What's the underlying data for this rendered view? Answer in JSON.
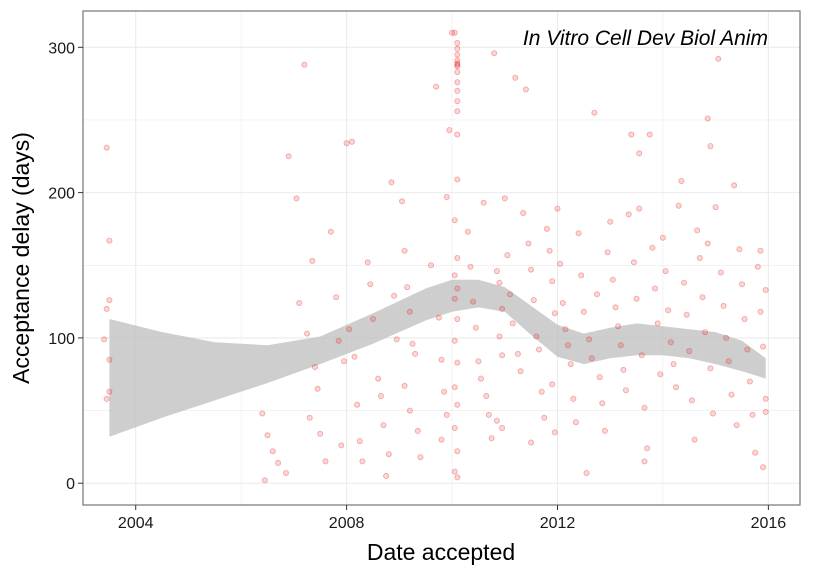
{
  "chart_data": {
    "type": "scatter",
    "title": "",
    "annotation": "In Vitro Cell Dev Biol Anim",
    "xlabel": "Date accepted",
    "ylabel": "Acceptance delay (days)",
    "xlim": [
      2003.0,
      2016.6
    ],
    "ylim": [
      -15,
      325
    ],
    "x_ticks": [
      2004,
      2008,
      2012,
      2016
    ],
    "x_tick_labels": [
      "2004",
      "2008",
      "2012",
      "2016"
    ],
    "y_ticks": [
      0,
      100,
      200,
      300
    ],
    "y_tick_labels": [
      "0",
      "100",
      "200",
      "300"
    ],
    "grid": true,
    "legend": "none",
    "colors": {
      "points": "#e41a1c",
      "ribbon": "#bdbdbd",
      "grid": "#ebebeb",
      "border": "#7f7f7f"
    },
    "smooth_band": {
      "x": [
        2003.5,
        2004.5,
        2005.5,
        2006.5,
        2007.5,
        2008.5,
        2009.5,
        2010.0,
        2010.5,
        2011.0,
        2011.5,
        2012.0,
        2012.5,
        2013.0,
        2013.5,
        2014.0,
        2014.5,
        2015.0,
        2015.5,
        2015.95
      ],
      "lower": [
        32,
        45,
        57,
        69,
        82,
        96,
        112,
        118,
        121,
        118,
        102,
        87,
        82,
        86,
        88,
        88,
        86,
        82,
        77,
        72
      ],
      "upper": [
        113,
        104,
        97,
        95,
        101,
        117,
        134,
        140,
        140,
        135,
        122,
        109,
        103,
        107,
        110,
        108,
        106,
        104,
        98,
        86
      ]
    },
    "points": [
      {
        "x": 2003.45,
        "y": 231
      },
      {
        "x": 2003.5,
        "y": 167
      },
      {
        "x": 2003.5,
        "y": 126
      },
      {
        "x": 2003.45,
        "y": 120
      },
      {
        "x": 2003.4,
        "y": 99
      },
      {
        "x": 2003.5,
        "y": 85
      },
      {
        "x": 2003.5,
        "y": 63
      },
      {
        "x": 2003.45,
        "y": 58
      },
      {
        "x": 2006.4,
        "y": 48
      },
      {
        "x": 2006.5,
        "y": 33
      },
      {
        "x": 2006.6,
        "y": 22
      },
      {
        "x": 2006.7,
        "y": 14
      },
      {
        "x": 2006.45,
        "y": 2
      },
      {
        "x": 2006.85,
        "y": 7
      },
      {
        "x": 2006.9,
        "y": 225
      },
      {
        "x": 2007.05,
        "y": 196
      },
      {
        "x": 2007.1,
        "y": 124
      },
      {
        "x": 2007.25,
        "y": 103
      },
      {
        "x": 2007.2,
        "y": 288
      },
      {
        "x": 2007.35,
        "y": 153
      },
      {
        "x": 2007.4,
        "y": 80
      },
      {
        "x": 2007.45,
        "y": 65
      },
      {
        "x": 2007.3,
        "y": 45
      },
      {
        "x": 2007.5,
        "y": 34
      },
      {
        "x": 2007.6,
        "y": 15
      },
      {
        "x": 2007.7,
        "y": 173
      },
      {
        "x": 2007.8,
        "y": 128
      },
      {
        "x": 2007.85,
        "y": 98
      },
      {
        "x": 2007.95,
        "y": 84
      },
      {
        "x": 2007.9,
        "y": 26
      },
      {
        "x": 2008.0,
        "y": 234
      },
      {
        "x": 2008.1,
        "y": 235
      },
      {
        "x": 2008.05,
        "y": 106
      },
      {
        "x": 2008.15,
        "y": 87
      },
      {
        "x": 2008.2,
        "y": 54
      },
      {
        "x": 2008.25,
        "y": 29
      },
      {
        "x": 2008.3,
        "y": 15
      },
      {
        "x": 2008.4,
        "y": 152
      },
      {
        "x": 2008.45,
        "y": 137
      },
      {
        "x": 2008.5,
        "y": 113
      },
      {
        "x": 2008.6,
        "y": 72
      },
      {
        "x": 2008.65,
        "y": 60
      },
      {
        "x": 2008.7,
        "y": 40
      },
      {
        "x": 2008.8,
        "y": 20
      },
      {
        "x": 2008.85,
        "y": 207
      },
      {
        "x": 2008.9,
        "y": 129
      },
      {
        "x": 2008.95,
        "y": 99
      },
      {
        "x": 2008.75,
        "y": 5
      },
      {
        "x": 2009.05,
        "y": 194
      },
      {
        "x": 2009.1,
        "y": 160
      },
      {
        "x": 2009.15,
        "y": 135
      },
      {
        "x": 2009.2,
        "y": 118
      },
      {
        "x": 2009.25,
        "y": 96
      },
      {
        "x": 2009.3,
        "y": 89
      },
      {
        "x": 2009.1,
        "y": 67
      },
      {
        "x": 2009.2,
        "y": 50
      },
      {
        "x": 2009.35,
        "y": 36
      },
      {
        "x": 2009.4,
        "y": 18
      },
      {
        "x": 2009.6,
        "y": 150
      },
      {
        "x": 2009.7,
        "y": 273
      },
      {
        "x": 2009.75,
        "y": 114
      },
      {
        "x": 2009.8,
        "y": 85
      },
      {
        "x": 2009.85,
        "y": 63
      },
      {
        "x": 2009.9,
        "y": 47
      },
      {
        "x": 2009.8,
        "y": 30
      },
      {
        "x": 2009.95,
        "y": 243
      },
      {
        "x": 2009.9,
        "y": 197
      },
      {
        "x": 2010.0,
        "y": 310
      },
      {
        "x": 2010.05,
        "y": 310
      },
      {
        "x": 2010.1,
        "y": 303
      },
      {
        "x": 2010.1,
        "y": 299
      },
      {
        "x": 2010.1,
        "y": 295
      },
      {
        "x": 2010.1,
        "y": 291
      },
      {
        "x": 2010.1,
        "y": 289
      },
      {
        "x": 2010.1,
        "y": 288
      },
      {
        "x": 2010.1,
        "y": 287
      },
      {
        "x": 2010.1,
        "y": 283
      },
      {
        "x": 2010.1,
        "y": 276
      },
      {
        "x": 2010.1,
        "y": 270
      },
      {
        "x": 2010.1,
        "y": 263
      },
      {
        "x": 2010.1,
        "y": 256
      },
      {
        "x": 2010.1,
        "y": 240
      },
      {
        "x": 2010.05,
        "y": 181
      },
      {
        "x": 2010.1,
        "y": 155
      },
      {
        "x": 2010.05,
        "y": 143
      },
      {
        "x": 2010.1,
        "y": 134
      },
      {
        "x": 2010.05,
        "y": 127
      },
      {
        "x": 2010.1,
        "y": 113
      },
      {
        "x": 2010.05,
        "y": 98
      },
      {
        "x": 2010.1,
        "y": 83
      },
      {
        "x": 2010.05,
        "y": 66
      },
      {
        "x": 2010.1,
        "y": 54
      },
      {
        "x": 2010.05,
        "y": 38
      },
      {
        "x": 2010.1,
        "y": 22
      },
      {
        "x": 2010.05,
        "y": 8
      },
      {
        "x": 2010.1,
        "y": 4
      },
      {
        "x": 2010.1,
        "y": 209
      },
      {
        "x": 2010.3,
        "y": 173
      },
      {
        "x": 2010.35,
        "y": 149
      },
      {
        "x": 2010.4,
        "y": 125
      },
      {
        "x": 2010.45,
        "y": 107
      },
      {
        "x": 2010.5,
        "y": 84
      },
      {
        "x": 2010.55,
        "y": 72
      },
      {
        "x": 2010.6,
        "y": 193
      },
      {
        "x": 2010.65,
        "y": 60
      },
      {
        "x": 2010.7,
        "y": 47
      },
      {
        "x": 2010.75,
        "y": 31
      },
      {
        "x": 2010.8,
        "y": 296
      },
      {
        "x": 2010.85,
        "y": 146
      },
      {
        "x": 2010.9,
        "y": 138
      },
      {
        "x": 2010.95,
        "y": 120
      },
      {
        "x": 2010.9,
        "y": 101
      },
      {
        "x": 2010.95,
        "y": 88
      },
      {
        "x": 2010.85,
        "y": 43
      },
      {
        "x": 2010.95,
        "y": 38
      },
      {
        "x": 2011.0,
        "y": 196
      },
      {
        "x": 2011.05,
        "y": 157
      },
      {
        "x": 2011.1,
        "y": 130
      },
      {
        "x": 2011.15,
        "y": 110
      },
      {
        "x": 2011.2,
        "y": 279
      },
      {
        "x": 2011.25,
        "y": 89
      },
      {
        "x": 2011.3,
        "y": 77
      },
      {
        "x": 2011.35,
        "y": 186
      },
      {
        "x": 2011.4,
        "y": 271
      },
      {
        "x": 2011.45,
        "y": 165
      },
      {
        "x": 2011.5,
        "y": 147
      },
      {
        "x": 2011.55,
        "y": 126
      },
      {
        "x": 2011.6,
        "y": 101
      },
      {
        "x": 2011.65,
        "y": 92
      },
      {
        "x": 2011.7,
        "y": 63
      },
      {
        "x": 2011.5,
        "y": 28
      },
      {
        "x": 2011.75,
        "y": 45
      },
      {
        "x": 2011.8,
        "y": 175
      },
      {
        "x": 2011.85,
        "y": 160
      },
      {
        "x": 2011.9,
        "y": 139
      },
      {
        "x": 2011.95,
        "y": 117
      },
      {
        "x": 2011.9,
        "y": 68
      },
      {
        "x": 2011.95,
        "y": 35
      },
      {
        "x": 2012.0,
        "y": 189
      },
      {
        "x": 2012.05,
        "y": 151
      },
      {
        "x": 2012.1,
        "y": 124
      },
      {
        "x": 2012.15,
        "y": 106
      },
      {
        "x": 2012.2,
        "y": 95
      },
      {
        "x": 2012.25,
        "y": 82
      },
      {
        "x": 2012.3,
        "y": 58
      },
      {
        "x": 2012.35,
        "y": 42
      },
      {
        "x": 2012.4,
        "y": 172
      },
      {
        "x": 2012.45,
        "y": 143
      },
      {
        "x": 2012.5,
        "y": 118
      },
      {
        "x": 2012.55,
        "y": 7
      },
      {
        "x": 2012.6,
        "y": 99
      },
      {
        "x": 2012.65,
        "y": 86
      },
      {
        "x": 2012.7,
        "y": 255
      },
      {
        "x": 2012.75,
        "y": 130
      },
      {
        "x": 2012.8,
        "y": 73
      },
      {
        "x": 2012.85,
        "y": 55
      },
      {
        "x": 2012.9,
        "y": 36
      },
      {
        "x": 2012.95,
        "y": 159
      },
      {
        "x": 2013.0,
        "y": 180
      },
      {
        "x": 2013.05,
        "y": 140
      },
      {
        "x": 2013.1,
        "y": 121
      },
      {
        "x": 2013.15,
        "y": 108
      },
      {
        "x": 2013.2,
        "y": 95
      },
      {
        "x": 2013.25,
        "y": 78
      },
      {
        "x": 2013.3,
        "y": 64
      },
      {
        "x": 2013.35,
        "y": 185
      },
      {
        "x": 2013.4,
        "y": 240
      },
      {
        "x": 2013.45,
        "y": 152
      },
      {
        "x": 2013.5,
        "y": 127
      },
      {
        "x": 2013.55,
        "y": 189
      },
      {
        "x": 2013.6,
        "y": 88
      },
      {
        "x": 2013.65,
        "y": 52
      },
      {
        "x": 2013.7,
        "y": 24
      },
      {
        "x": 2013.75,
        "y": 240
      },
      {
        "x": 2013.8,
        "y": 162
      },
      {
        "x": 2013.85,
        "y": 134
      },
      {
        "x": 2013.9,
        "y": 110
      },
      {
        "x": 2013.95,
        "y": 75
      },
      {
        "x": 2013.55,
        "y": 227
      },
      {
        "x": 2013.65,
        "y": 15
      },
      {
        "x": 2014.0,
        "y": 169
      },
      {
        "x": 2014.05,
        "y": 146
      },
      {
        "x": 2014.1,
        "y": 119
      },
      {
        "x": 2014.15,
        "y": 97
      },
      {
        "x": 2014.2,
        "y": 82
      },
      {
        "x": 2014.25,
        "y": 66
      },
      {
        "x": 2014.3,
        "y": 191
      },
      {
        "x": 2014.35,
        "y": 208
      },
      {
        "x": 2014.4,
        "y": 138
      },
      {
        "x": 2014.45,
        "y": 116
      },
      {
        "x": 2014.5,
        "y": 91
      },
      {
        "x": 2014.55,
        "y": 57
      },
      {
        "x": 2014.6,
        "y": 30
      },
      {
        "x": 2014.65,
        "y": 174
      },
      {
        "x": 2014.7,
        "y": 155
      },
      {
        "x": 2014.75,
        "y": 128
      },
      {
        "x": 2014.8,
        "y": 104
      },
      {
        "x": 2014.85,
        "y": 251
      },
      {
        "x": 2014.9,
        "y": 79
      },
      {
        "x": 2014.95,
        "y": 48
      },
      {
        "x": 2014.9,
        "y": 232
      },
      {
        "x": 2014.85,
        "y": 165
      },
      {
        "x": 2015.0,
        "y": 190
      },
      {
        "x": 2015.05,
        "y": 292
      },
      {
        "x": 2015.1,
        "y": 145
      },
      {
        "x": 2015.15,
        "y": 122
      },
      {
        "x": 2015.2,
        "y": 100
      },
      {
        "x": 2015.25,
        "y": 84
      },
      {
        "x": 2015.3,
        "y": 61
      },
      {
        "x": 2015.35,
        "y": 205
      },
      {
        "x": 2015.4,
        "y": 40
      },
      {
        "x": 2015.45,
        "y": 161
      },
      {
        "x": 2015.5,
        "y": 137
      },
      {
        "x": 2015.55,
        "y": 113
      },
      {
        "x": 2015.6,
        "y": 92
      },
      {
        "x": 2015.65,
        "y": 70
      },
      {
        "x": 2015.7,
        "y": 47
      },
      {
        "x": 2015.75,
        "y": 21
      },
      {
        "x": 2015.8,
        "y": 149
      },
      {
        "x": 2015.85,
        "y": 118
      },
      {
        "x": 2015.9,
        "y": 94
      },
      {
        "x": 2015.95,
        "y": 58
      },
      {
        "x": 2015.9,
        "y": 11
      },
      {
        "x": 2015.95,
        "y": 133
      },
      {
        "x": 2015.85,
        "y": 160
      },
      {
        "x": 2015.95,
        "y": 49
      }
    ]
  }
}
